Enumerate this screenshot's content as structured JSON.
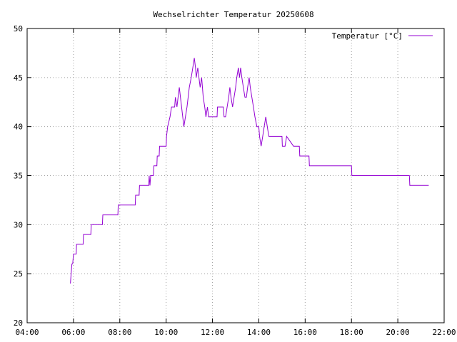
{
  "chart_data": {
    "type": "line",
    "title": "Wechselrichter Temperatur 20250608",
    "xlabel": "",
    "ylabel": "",
    "xlim": [
      "04:00",
      "22:00"
    ],
    "ylim": [
      20,
      50
    ],
    "x_ticks": [
      "04:00",
      "06:00",
      "08:00",
      "10:00",
      "12:00",
      "14:00",
      "16:00",
      "18:00",
      "20:00",
      "22:00"
    ],
    "y_ticks": [
      20,
      25,
      30,
      35,
      40,
      45,
      50
    ],
    "grid": true,
    "legend_position": "top-right",
    "series": [
      {
        "name": "Temperatur [°C]",
        "color": "#9400d3",
        "points": [
          [
            "05:52",
            24
          ],
          [
            "05:54",
            25
          ],
          [
            "05:56",
            26
          ],
          [
            "05:58",
            26
          ],
          [
            "06:00",
            27
          ],
          [
            "06:07",
            27
          ],
          [
            "06:08",
            28
          ],
          [
            "06:25",
            28
          ],
          [
            "06:26",
            29
          ],
          [
            "06:45",
            29
          ],
          [
            "06:46",
            30
          ],
          [
            "07:15",
            30
          ],
          [
            "07:16",
            31
          ],
          [
            "07:55",
            31
          ],
          [
            "07:56",
            32
          ],
          [
            "08:40",
            32
          ],
          [
            "08:41",
            33
          ],
          [
            "08:50",
            33
          ],
          [
            "08:51",
            34
          ],
          [
            "09:15",
            34
          ],
          [
            "09:16",
            35
          ],
          [
            "09:18",
            34
          ],
          [
            "09:20",
            35
          ],
          [
            "09:27",
            35
          ],
          [
            "09:28",
            36
          ],
          [
            "09:36",
            36
          ],
          [
            "09:37",
            37
          ],
          [
            "09:42",
            37
          ],
          [
            "09:43",
            38
          ],
          [
            "10:00",
            38
          ],
          [
            "10:01",
            39
          ],
          [
            "10:04",
            40
          ],
          [
            "10:10",
            41
          ],
          [
            "10:14",
            42
          ],
          [
            "10:22",
            42
          ],
          [
            "10:24",
            43
          ],
          [
            "10:28",
            42
          ],
          [
            "10:31",
            43
          ],
          [
            "10:34",
            44
          ],
          [
            "10:37",
            43
          ],
          [
            "10:40",
            42
          ],
          [
            "10:43",
            41
          ],
          [
            "10:46",
            40
          ],
          [
            "10:50",
            41
          ],
          [
            "10:54",
            42
          ],
          [
            "10:57",
            43
          ],
          [
            "11:00",
            44
          ],
          [
            "11:05",
            45
          ],
          [
            "11:09",
            46
          ],
          [
            "11:13",
            47
          ],
          [
            "11:16",
            46
          ],
          [
            "11:18",
            45
          ],
          [
            "11:22",
            46
          ],
          [
            "11:25",
            45
          ],
          [
            "11:28",
            44
          ],
          [
            "11:32",
            45
          ],
          [
            "11:36",
            43
          ],
          [
            "11:40",
            42
          ],
          [
            "11:43",
            41
          ],
          [
            "11:47",
            42
          ],
          [
            "11:50",
            41
          ],
          [
            "12:00",
            41
          ],
          [
            "12:12",
            41
          ],
          [
            "12:13",
            42
          ],
          [
            "12:28",
            42
          ],
          [
            "12:30",
            41
          ],
          [
            "12:34",
            41
          ],
          [
            "12:38",
            42
          ],
          [
            "12:42",
            43
          ],
          [
            "12:45",
            44
          ],
          [
            "12:48",
            43
          ],
          [
            "12:52",
            42
          ],
          [
            "12:56",
            43
          ],
          [
            "13:00",
            44
          ],
          [
            "13:03",
            45
          ],
          [
            "13:07",
            46
          ],
          [
            "13:10",
            45
          ],
          [
            "13:13",
            46
          ],
          [
            "13:16",
            45
          ],
          [
            "13:20",
            44
          ],
          [
            "13:24",
            43
          ],
          [
            "13:28",
            43
          ],
          [
            "13:31",
            44
          ],
          [
            "13:35",
            45
          ],
          [
            "13:38",
            44
          ],
          [
            "13:42",
            43
          ],
          [
            "13:46",
            42
          ],
          [
            "13:50",
            41
          ],
          [
            "13:55",
            40
          ],
          [
            "14:00",
            40
          ],
          [
            "14:02",
            39
          ],
          [
            "14:06",
            38
          ],
          [
            "14:10",
            39
          ],
          [
            "14:14",
            40
          ],
          [
            "14:18",
            41
          ],
          [
            "14:22",
            40
          ],
          [
            "14:26",
            39
          ],
          [
            "14:45",
            39
          ],
          [
            "15:00",
            39
          ],
          [
            "15:01",
            38
          ],
          [
            "15:08",
            38
          ],
          [
            "15:12",
            39
          ],
          [
            "15:30",
            38
          ],
          [
            "15:45",
            38
          ],
          [
            "15:46",
            37
          ],
          [
            "16:10",
            37
          ],
          [
            "16:11",
            36
          ],
          [
            "17:00",
            36
          ],
          [
            "18:00",
            36
          ],
          [
            "18:01",
            35
          ],
          [
            "19:30",
            35
          ],
          [
            "20:30",
            35
          ],
          [
            "20:31",
            34
          ],
          [
            "21:20",
            34
          ]
        ]
      }
    ]
  }
}
